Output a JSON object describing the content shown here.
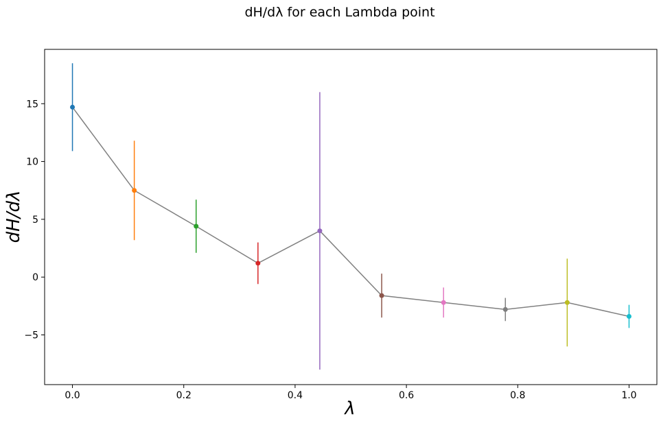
{
  "chart_data": {
    "type": "line",
    "title": "dH/dλ for each Lambda point",
    "xlabel": "λ",
    "ylabel": "dH/dλ",
    "xlim": [
      -0.05,
      1.05
    ],
    "ylim": [
      -9.3,
      19.7
    ],
    "xticks": [
      0.0,
      0.2,
      0.4,
      0.6,
      0.8,
      1.0
    ],
    "xtick_labels": [
      "0.0",
      "0.2",
      "0.4",
      "0.6",
      "0.8",
      "1.0"
    ],
    "yticks": [
      -5,
      0,
      5,
      10,
      15
    ],
    "ytick_labels": [
      "−5",
      "0",
      "5",
      "10",
      "15"
    ],
    "grid": false,
    "line_color": "#808080",
    "points": [
      {
        "x": 0.0,
        "y": 14.7,
        "err": 3.8,
        "color": "#1f77b4"
      },
      {
        "x": 0.1111,
        "y": 7.5,
        "err": 4.3,
        "color": "#ff7f0e"
      },
      {
        "x": 0.2222,
        "y": 4.4,
        "err": 2.3,
        "color": "#2ca02c"
      },
      {
        "x": 0.3333,
        "y": 1.2,
        "err": 1.8,
        "color": "#d62728"
      },
      {
        "x": 0.4444,
        "y": 4.0,
        "err": 12.0,
        "color": "#9467bd"
      },
      {
        "x": 0.5556,
        "y": -1.6,
        "err": 1.9,
        "color": "#8c564b"
      },
      {
        "x": 0.6667,
        "y": -2.2,
        "err": 1.3,
        "color": "#e377c2"
      },
      {
        "x": 0.7778,
        "y": -2.8,
        "err": 1.0,
        "color": "#7f7f7f"
      },
      {
        "x": 0.8889,
        "y": -2.2,
        "err": 3.8,
        "color": "#bcbd22"
      },
      {
        "x": 1.0,
        "y": -3.4,
        "err": 1.0,
        "color": "#17becf"
      }
    ]
  }
}
